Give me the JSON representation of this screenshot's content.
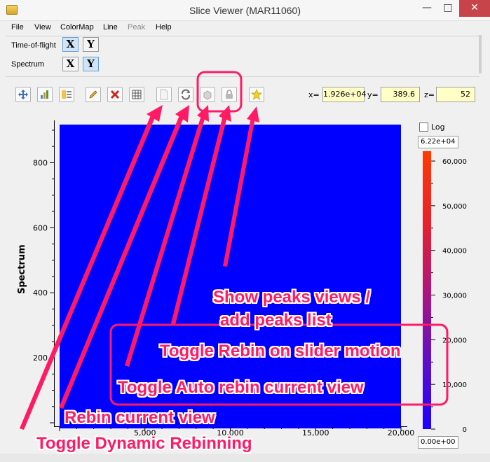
{
  "window": {
    "title": "Slice Viewer (MAR11060)",
    "minimize_glyph": "—",
    "maximize_glyph": "□",
    "close_glyph": "✕"
  },
  "menu": {
    "items": [
      {
        "label": "File",
        "enabled": true
      },
      {
        "label": "View",
        "enabled": true
      },
      {
        "label": "ColorMap",
        "enabled": true
      },
      {
        "label": "Line",
        "enabled": true
      },
      {
        "label": "Peak",
        "enabled": false
      },
      {
        "label": "Help",
        "enabled": true
      }
    ]
  },
  "dimensions": [
    {
      "name": "Time-of-flight",
      "x_label": "X",
      "y_label": "Y",
      "selected": "X"
    },
    {
      "name": "Spectrum",
      "x_label": "X",
      "y_label": "Y",
      "selected": "Y"
    }
  ],
  "toolbar": {
    "buttons": [
      {
        "name": "zoom-pan-button",
        "icon": "move-arrows-icon",
        "enabled": true
      },
      {
        "name": "fit-view-button",
        "icon": "chart-icon",
        "enabled": true
      },
      {
        "name": "colormap-button",
        "icon": "colormap-icon",
        "enabled": true
      },
      {
        "name": "line-tool-button",
        "icon": "pencil-icon",
        "enabled": true
      },
      {
        "name": "clear-line-button",
        "icon": "red-x-icon",
        "enabled": true
      },
      {
        "name": "grid-button",
        "icon": "grid-icon",
        "enabled": true
      },
      {
        "name": "rebin-button",
        "icon": "page-icon",
        "enabled": false
      },
      {
        "name": "refresh-button",
        "icon": "refresh-icon",
        "enabled": true
      },
      {
        "name": "auto-rebin-button",
        "icon": "cube-icon",
        "enabled": false
      },
      {
        "name": "lock-rebin-button",
        "icon": "lock-icon",
        "enabled": false
      },
      {
        "name": "peaks-button",
        "icon": "star-icon",
        "enabled": true
      }
    ]
  },
  "coordinates": {
    "x_label": "x=",
    "x_value": "1.926e+04",
    "y_label": "y=",
    "y_value": "389.6",
    "z_label": "z=",
    "z_value": "52"
  },
  "plot": {
    "fill_color": "#0000ff",
    "y_axis_label": "Spectrum",
    "x_axis_label_partial": "ı"
  },
  "chart_data": {
    "type": "heatmap",
    "xlabel": "",
    "ylabel": "Spectrum",
    "x_ticks": [
      "5,000",
      "10,000",
      "15,000",
      "20,000"
    ],
    "y_ticks": [
      "200",
      "400",
      "600",
      "800"
    ],
    "xlim": [
      0,
      20000
    ],
    "ylim": [
      0,
      900
    ],
    "colorbar": {
      "log": false,
      "log_label": "Log",
      "max_text": "6.22e+04",
      "min_text": "0.00e+00",
      "ticks": [
        "60,000",
        "50,000",
        "40,000",
        "30,000",
        "20,000",
        "10,000",
        "0"
      ],
      "range": [
        0,
        62200
      ]
    }
  },
  "annotations": {
    "color": "#ff1a66",
    "labels": [
      "Show peaks views /",
      "add peaks list",
      "Toggle Rebin on slider motion",
      "Toggle Auto rebin current view",
      "Rebin current view",
      "Toggle Dynamic Rebinning"
    ]
  }
}
